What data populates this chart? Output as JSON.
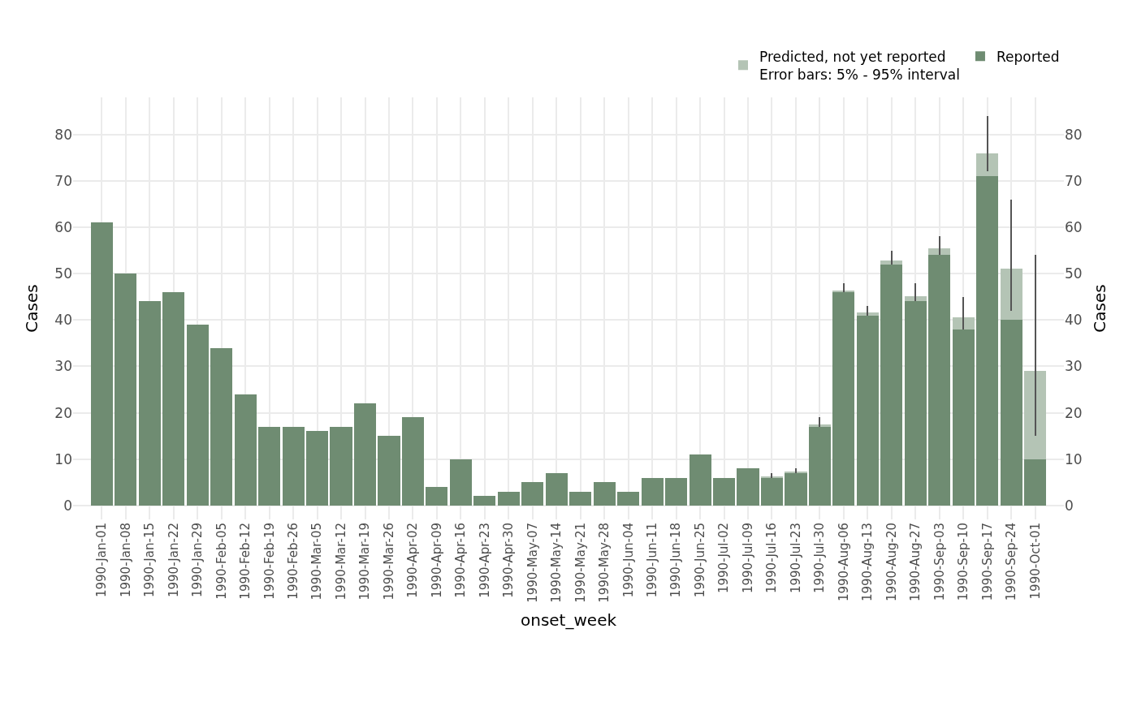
{
  "chart_data": {
    "type": "bar",
    "stacked": true,
    "xlabel": "onset_week",
    "ylabel": "Cases",
    "y2label": "Cases",
    "categories": [
      "1990-Jan-01",
      "1990-Jan-08",
      "1990-Jan-15",
      "1990-Jan-22",
      "1990-Jan-29",
      "1990-Feb-05",
      "1990-Feb-12",
      "1990-Feb-19",
      "1990-Feb-26",
      "1990-Mar-05",
      "1990-Mar-12",
      "1990-Mar-19",
      "1990-Mar-26",
      "1990-Apr-02",
      "1990-Apr-09",
      "1990-Apr-16",
      "1990-Apr-23",
      "1990-Apr-30",
      "1990-May-07",
      "1990-May-14",
      "1990-May-21",
      "1990-May-28",
      "1990-Jun-04",
      "1990-Jun-11",
      "1990-Jun-18",
      "1990-Jun-25",
      "1990-Jul-02",
      "1990-Jul-09",
      "1990-Jul-16",
      "1990-Jul-23",
      "1990-Jul-30",
      "1990-Aug-06",
      "1990-Aug-13",
      "1990-Aug-20",
      "1990-Aug-27",
      "1990-Sep-03",
      "1990-Sep-10",
      "1990-Sep-17",
      "1990-Sep-24",
      "1990-Oct-01"
    ],
    "series": [
      {
        "name": "Reported",
        "color": "#6f8c72",
        "values": [
          61,
          50,
          44,
          46,
          39,
          34,
          24,
          17,
          17,
          16,
          17,
          22,
          15,
          19,
          4,
          10,
          2,
          3,
          5,
          7,
          3,
          5,
          3,
          6,
          6,
          11,
          6,
          8,
          6,
          7,
          17,
          46,
          41,
          52,
          44,
          54,
          38,
          71,
          40,
          10
        ]
      },
      {
        "name": "Predicted, not yet reported\nError bars: 5% - 95% interval",
        "color": "#b4c4b5",
        "values": [
          null,
          null,
          null,
          null,
          null,
          null,
          null,
          null,
          null,
          null,
          null,
          null,
          null,
          null,
          null,
          null,
          null,
          null,
          null,
          null,
          null,
          null,
          null,
          null,
          null,
          null,
          null,
          null,
          0.2,
          0.2,
          0.4,
          0.4,
          0.7,
          0.9,
          1.2,
          1.5,
          2.6,
          5,
          11.1,
          19
        ],
        "errors": [
          null,
          null,
          null,
          null,
          null,
          null,
          null,
          null,
          null,
          null,
          null,
          null,
          null,
          null,
          null,
          null,
          null,
          null,
          null,
          null,
          null,
          null,
          null,
          null,
          null,
          null,
          null,
          null,
          [
            6,
            7
          ],
          [
            7,
            8
          ],
          [
            17,
            19
          ],
          [
            46,
            48
          ],
          [
            41,
            43
          ],
          [
            52,
            55
          ],
          [
            44,
            48
          ],
          [
            54,
            58
          ],
          [
            38,
            45
          ],
          [
            72,
            84
          ],
          [
            42,
            66
          ],
          [
            15,
            54
          ]
        ]
      }
    ],
    "ylim": [
      -3,
      88
    ],
    "yticks": [
      0,
      10,
      20,
      30,
      40,
      50,
      60,
      70,
      80
    ],
    "y2lim": [
      -3,
      88
    ],
    "y2ticks": [
      0,
      10,
      20,
      30,
      40,
      50,
      60,
      70,
      80
    ],
    "grid": true,
    "legend": "top right"
  }
}
